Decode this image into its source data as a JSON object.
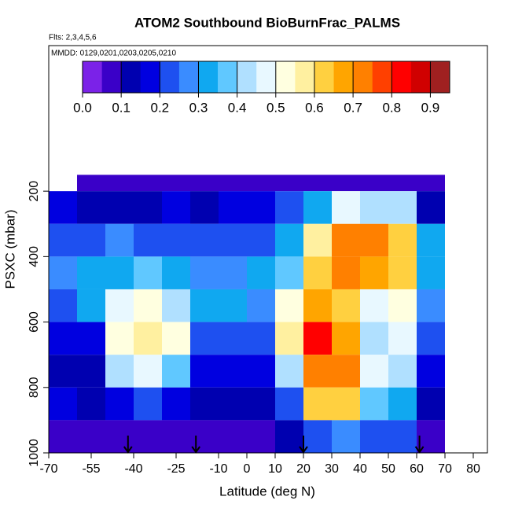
{
  "chart_data": {
    "type": "heatmap",
    "title": "ATOM2 Southbound BioBurnFrac_PALMS",
    "subtitle": "Flts: 2,3,4,5,6",
    "annotation": "MMDD: 0129,0201,0203,0205,0210",
    "x_label": "Latitude (deg N)",
    "y_label": "PSXC (mbar)",
    "xlim": [
      -70,
      85
    ],
    "xticks": [
      -70,
      -55,
      -40,
      -25,
      -10,
      0,
      10,
      20,
      30,
      40,
      50,
      60,
      70,
      80
    ],
    "ylim": [
      1000,
      -245
    ],
    "yticks": [
      200,
      400,
      600,
      800,
      1000
    ],
    "x_edges": [
      -70,
      -60,
      -50,
      -40,
      -30,
      -20,
      -10,
      0,
      10,
      20,
      30,
      40,
      50,
      60,
      70
    ],
    "y_edges": [
      150,
      200,
      300,
      400,
      500,
      600,
      700,
      800,
      900,
      1000
    ],
    "values": [
      [
        null,
        0.15,
        0.2,
        0.25,
        0.2,
        0.15,
        0.1,
        0.15,
        0.05
      ],
      [
        0.05,
        0.1,
        0.2,
        0.3,
        0.3,
        0.15,
        0.1,
        0.1,
        0.05
      ],
      [
        0.05,
        0.1,
        0.25,
        0.3,
        0.45,
        0.5,
        0.4,
        0.15,
        0.05
      ],
      [
        0.05,
        0.1,
        0.2,
        0.35,
        0.5,
        0.55,
        0.45,
        0.2,
        0.05
      ],
      [
        0.05,
        0.15,
        0.2,
        0.3,
        0.4,
        0.5,
        0.35,
        0.15,
        0.05
      ],
      [
        0.05,
        0.1,
        0.2,
        0.25,
        0.3,
        0.2,
        0.15,
        0.1,
        0.05
      ],
      [
        0.05,
        0.15,
        0.2,
        0.25,
        0.3,
        0.2,
        0.15,
        0.1,
        0.05
      ],
      [
        0.05,
        0.15,
        0.2,
        0.3,
        0.25,
        0.2,
        0.15,
        0.1,
        0.05
      ],
      [
        0.05,
        0.2,
        0.3,
        0.35,
        0.5,
        0.55,
        0.4,
        0.2,
        0.1
      ],
      [
        0.05,
        0.3,
        0.55,
        0.6,
        0.65,
        0.8,
        0.7,
        0.6,
        0.2
      ],
      [
        0.05,
        0.45,
        0.7,
        0.7,
        0.6,
        0.65,
        0.7,
        0.6,
        0.25
      ],
      [
        0.05,
        0.4,
        0.7,
        0.65,
        0.45,
        0.4,
        0.45,
        0.35,
        0.2
      ],
      [
        0.05,
        0.4,
        0.6,
        0.6,
        0.5,
        0.45,
        0.4,
        0.3,
        0.2
      ],
      [
        0.05,
        0.1,
        0.3,
        0.3,
        0.25,
        0.2,
        0.15,
        0.1,
        0.05
      ]
    ],
    "arrows_x": [
      -42,
      -18,
      20,
      61
    ],
    "colorbar": {
      "range": [
        0,
        0.95
      ],
      "ticks": [
        {
          "value": 0,
          "label": "0.0"
        },
        0.1,
        0.2,
        0.3,
        0.4,
        0.5,
        0.6,
        0.7,
        0.8,
        0.9
      ],
      "colors": [
        "#7b22e8",
        "#3a00c8",
        "#0000b0",
        "#0000e0",
        "#1e50f0",
        "#3a8cff",
        "#10a8f0",
        "#60c8ff",
        "#b0e0ff",
        "#e8f8ff",
        "#ffffe0",
        "#fff0a0",
        "#ffd040",
        "#ffa500",
        "#ff8000",
        "#ff4000",
        "#ff0000",
        "#d00000",
        "#a02020"
      ]
    }
  }
}
